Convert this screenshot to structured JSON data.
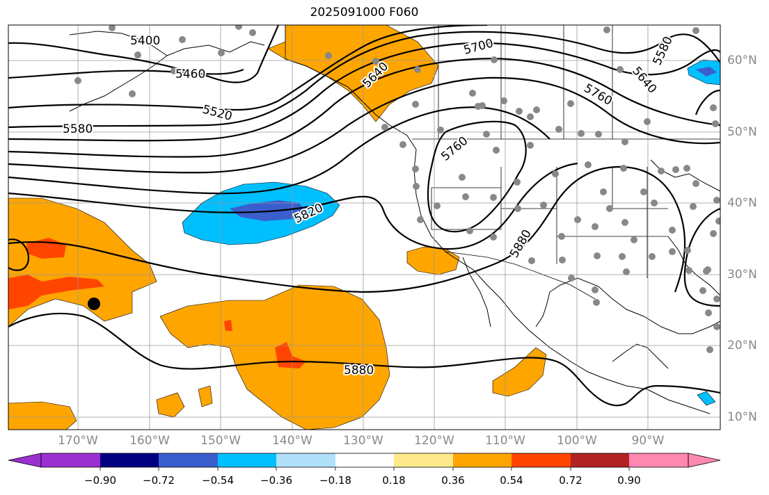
{
  "title": "2025091000 F060",
  "lon_labels": [
    "170°W",
    "160°W",
    "150°W",
    "140°W",
    "130°W",
    "120°W",
    "110°W",
    "100°W",
    "90°W"
  ],
  "lat_labels": [
    "60°N",
    "50°N",
    "40°N",
    "30°N",
    "20°N",
    "10°N"
  ],
  "contour_labels": [
    "5400",
    "5460",
    "5520",
    "5580",
    "5640",
    "5700",
    "5580",
    "5640",
    "5760",
    "5760",
    "5820",
    "5880",
    "5880"
  ],
  "colorbar": {
    "ticks": [
      "−0.90",
      "−0.72",
      "−0.54",
      "−0.36",
      "−0.18",
      "0.18",
      "0.36",
      "0.54",
      "0.72",
      "0.90"
    ],
    "colors": [
      "#9b30d0",
      "#000080",
      "#3a5fcd",
      "#00bfff",
      "#b0e0fa",
      "#ffffff",
      "#ffe98c",
      "#ffa500",
      "#ff4500",
      "#b22222",
      "#ff88b0"
    ]
  },
  "colors": {
    "anomaly_orange": "#ffa500",
    "anomaly_red": "#ff4500",
    "anomaly_blue": "#00bfff",
    "anomaly_darkblue": "#3a5fcd",
    "station_dot": "#888888",
    "contour": "#000000"
  }
}
